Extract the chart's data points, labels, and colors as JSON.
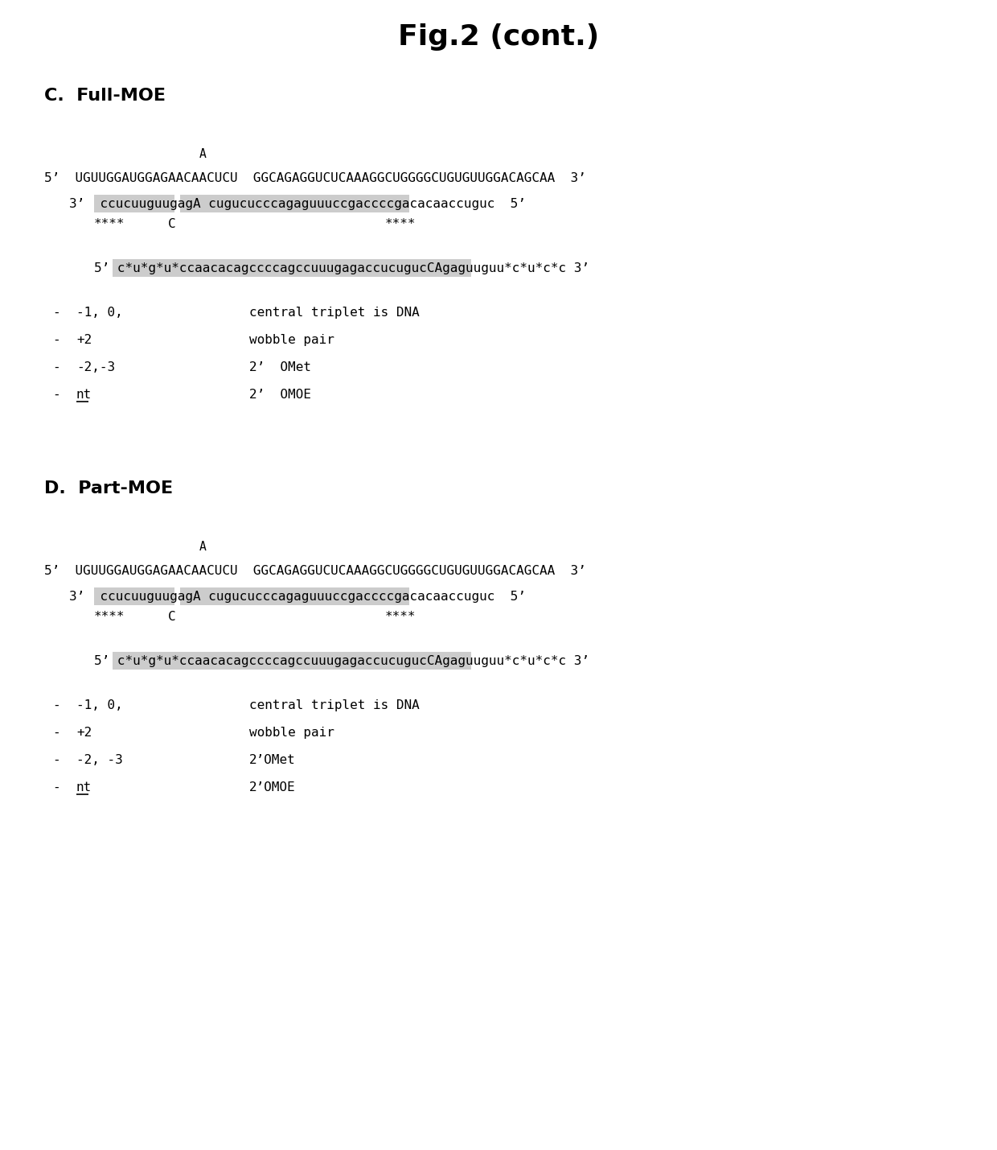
{
  "title": "Fig.2 (cont.)",
  "title_fontsize": 26,
  "title_fontweight": "bold",
  "bg_color": "#ffffff",
  "section_C_label": "C.  Full-MOE",
  "section_D_label": "D.  Part-MOE",
  "section_label_fontsize": 16,
  "section_label_fontweight": "bold",
  "mono_fontsize": 11.5,
  "highlight_color": "#cccccc",
  "C_line_A": "A",
  "C_line1": "5’  UGUUGGAUGGAGAACAACUCU  GGCAGAGGUCUCAAAGGCUGGGGCUGUGUUGGACAGCAA  3’",
  "C_line2_pre": "3’  ",
  "C_line2_hl1": "ccucuuguugagA",
  "C_line2_space": " ",
  "C_line2_hl2": "cugucucccagaguuuccgaccccgacacaaccuguc",
  "C_line2_post": "  5’",
  "C_stars_left": "****",
  "C_marker_C": "C",
  "C_stars_right": "****",
  "C_aso_pre": "5’ ",
  "C_aso_hl1": "c*u*g*u*ccaacacagccccagccuuugagaccucuguc",
  "C_aso_hl2": "CA",
  "C_aso_hl3": "gaguuguu*c*u*c*c",
  "C_aso_post": " 3’",
  "C_bullet1_dash": "-",
  "C_bullet1_num": "-1, 0,",
  "C_bullet1_tab": "     ",
  "C_bullet1_desc": "central triplet is DNA",
  "C_bullet2_dash": "-",
  "C_bullet2_num": "+2",
  "C_bullet2_tab": "          ",
  "C_bullet2_desc": "wobble pair",
  "C_bullet3_dash": "-",
  "C_bullet3_num": "-2,-3",
  "C_bullet3_tab": "     ",
  "C_bullet3_desc": "2’  OMet",
  "C_bullet4_dash": "-",
  "C_bullet4_num": "nt",
  "C_bullet4_tab": "          ",
  "C_bullet4_desc": "2’  OMOE",
  "C_bullet4_underline": true,
  "D_line_A": "A",
  "D_line1": "5’  UGUUGGAUGGAGAACAACUCU  GGCAGAGGUCUCAAAGGCUGGGGCUGUGUUGGACAGCAA  3’",
  "D_line2_pre": "3’  ",
  "D_line2_hl1": "ccucuuguugagA",
  "D_line2_space": " ",
  "D_line2_hl2": "cugucucccagaguuuccgaccccgacacaaccuguc",
  "D_line2_post": "  5’",
  "D_stars_left": "****",
  "D_marker_C": "C",
  "D_stars_right": "****",
  "D_aso_pre": "5’ ",
  "D_aso_hl1": "c*u*g*u*ccaacacagccccagccuuugagaccucuguc",
  "D_aso_hl2": "CA",
  "D_aso_hl3": "gaguuguu*c*u*c*c",
  "D_aso_post": " 3’",
  "D_bullet1_dash": "-",
  "D_bullet1_num": "-1, 0,",
  "D_bullet1_tab": "     ",
  "D_bullet1_desc": "central triplet is DNA",
  "D_bullet2_dash": "-",
  "D_bullet2_num": "+2",
  "D_bullet2_tab": "          ",
  "D_bullet2_desc": "wobble pair",
  "D_bullet3_dash": "-",
  "D_bullet3_num": "-2, -3",
  "D_bullet3_tab": "    ",
  "D_bullet3_desc": "2’OMet",
  "D_bullet4_dash": "-",
  "D_bullet4_num": "nt",
  "D_bullet4_tab": "          ",
  "D_bullet4_desc": "2’OMOE",
  "D_bullet4_underline": true
}
